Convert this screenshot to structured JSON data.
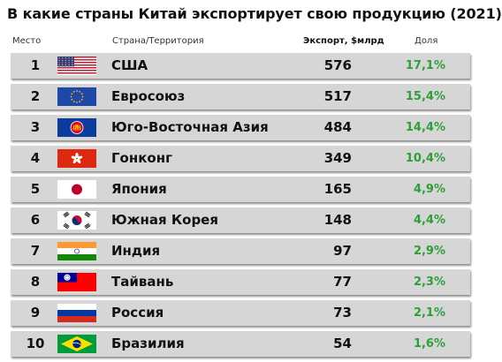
{
  "title": "В какие страны Китай экспортирует свою продукцию (2021)",
  "headers": {
    "rank": "Место",
    "country": "Страна/Территория",
    "exports": "Экспорт, $млрд",
    "share": "Доля"
  },
  "chart_data": {
    "type": "table",
    "title": "В какие страны Китай экспортирует свою продукцию (2021)",
    "columns": [
      "Место",
      "Страна/Территория",
      "Экспорт, $млрд",
      "Доля"
    ],
    "rows": [
      {
        "rank": "1",
        "flag": "usa-flag-icon",
        "country": "США",
        "exports": "576",
        "share": "17,1%"
      },
      {
        "rank": "2",
        "flag": "eu-flag-icon",
        "country": "Евросоюз",
        "exports": "517",
        "share": "15,4%"
      },
      {
        "rank": "3",
        "flag": "asean-flag-icon",
        "country": "Юго-Восточная Азия",
        "exports": "484",
        "share": "14,4%"
      },
      {
        "rank": "4",
        "flag": "hong-kong-flag-icon",
        "country": "Гонконг",
        "exports": "349",
        "share": "10,4%"
      },
      {
        "rank": "5",
        "flag": "japan-flag-icon",
        "country": "Япония",
        "exports": "165",
        "share": "4,9%"
      },
      {
        "rank": "6",
        "flag": "south-korea-flag-icon",
        "country": "Южная Корея",
        "exports": "148",
        "share": "4,4%"
      },
      {
        "rank": "7",
        "flag": "india-flag-icon",
        "country": "Индия",
        "exports": "97",
        "share": "2,9%"
      },
      {
        "rank": "8",
        "flag": "taiwan-flag-icon",
        "country": "Тайвань",
        "exports": "77",
        "share": "2,3%"
      },
      {
        "rank": "9",
        "flag": "russia-flag-icon",
        "country": "Россия",
        "exports": "73",
        "share": "2,1%"
      },
      {
        "rank": "10",
        "flag": "brazil-flag-icon",
        "country": "Бразилия",
        "exports": "54",
        "share": "1,6%"
      }
    ]
  },
  "colors": {
    "row_background": "#d6d6d6",
    "share_text": "#2e9e3a"
  }
}
